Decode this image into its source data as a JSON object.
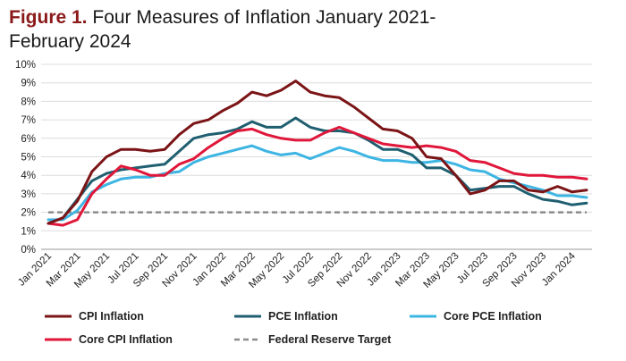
{
  "figure": {
    "title_prefix": "Figure 1.",
    "title_text": "Four Measures of Inflation January 2021-February 2024"
  },
  "chart_data": {
    "type": "line",
    "title": "Figure 1. Four Measures of Inflation January 2021-February 2024",
    "xlabel": "",
    "ylabel": "",
    "ylim": [
      0,
      10
    ],
    "y_ticks": [
      "0%",
      "1%",
      "2%",
      "3%",
      "4%",
      "5%",
      "6%",
      "7%",
      "8%",
      "9%",
      "10%"
    ],
    "x_tick_labels": [
      "Jan 2021",
      "Mar 2021",
      "May 2021",
      "Jul 2021",
      "Sep 2021",
      "Nov 2021",
      "Jan 2022",
      "Mar 2022",
      "May 2022",
      "Jul 2022",
      "Sep 2022",
      "Nov 2022",
      "Jan 2023",
      "Mar 2023",
      "May 2023",
      "Jul 2023",
      "Sep 2023",
      "Nov 2023",
      "Jan 2024"
    ],
    "x": [
      "Jan 2021",
      "Feb 2021",
      "Mar 2021",
      "Apr 2021",
      "May 2021",
      "Jun 2021",
      "Jul 2021",
      "Aug 2021",
      "Sep 2021",
      "Oct 2021",
      "Nov 2021",
      "Dec 2021",
      "Jan 2022",
      "Feb 2022",
      "Mar 2022",
      "Apr 2022",
      "May 2022",
      "Jun 2022",
      "Jul 2022",
      "Aug 2022",
      "Sep 2022",
      "Oct 2022",
      "Nov 2022",
      "Dec 2022",
      "Jan 2023",
      "Feb 2023",
      "Mar 2023",
      "Apr 2023",
      "May 2023",
      "Jun 2023",
      "Jul 2023",
      "Aug 2023",
      "Sep 2023",
      "Oct 2023",
      "Nov 2023",
      "Dec 2023",
      "Jan 2024",
      "Feb 2024"
    ],
    "grid": "horizontal",
    "legend_position": "bottom",
    "series": [
      {
        "name": "CPI Inflation",
        "color": "#7b1416",
        "dash": "solid",
        "values": [
          1.4,
          1.7,
          2.6,
          4.2,
          5.0,
          5.4,
          5.4,
          5.3,
          5.4,
          6.2,
          6.8,
          7.0,
          7.5,
          7.9,
          8.5,
          8.3,
          8.6,
          9.1,
          8.5,
          8.3,
          8.2,
          7.7,
          7.1,
          6.5,
          6.4,
          6.0,
          5.0,
          4.9,
          4.0,
          3.0,
          3.2,
          3.7,
          3.7,
          3.2,
          3.1,
          3.4,
          3.1,
          3.2
        ]
      },
      {
        "name": "PCE Inflation",
        "color": "#1f5f70",
        "dash": "solid",
        "values": [
          1.4,
          1.7,
          2.7,
          3.7,
          4.1,
          4.3,
          4.4,
          4.5,
          4.6,
          5.3,
          6.0,
          6.2,
          6.3,
          6.5,
          6.9,
          6.6,
          6.6,
          7.1,
          6.6,
          6.4,
          6.4,
          6.3,
          5.9,
          5.4,
          5.4,
          5.1,
          4.4,
          4.4,
          4.0,
          3.2,
          3.3,
          3.4,
          3.4,
          3.0,
          2.7,
          2.6,
          2.4,
          2.5
        ]
      },
      {
        "name": "Core PCE Inflation",
        "color": "#3db5e3",
        "dash": "solid",
        "values": [
          1.6,
          1.6,
          2.1,
          3.1,
          3.5,
          3.8,
          3.9,
          3.9,
          4.1,
          4.2,
          4.7,
          5.0,
          5.2,
          5.4,
          5.6,
          5.3,
          5.1,
          5.2,
          4.9,
          5.2,
          5.5,
          5.3,
          5.0,
          4.8,
          4.8,
          4.7,
          4.7,
          4.8,
          4.6,
          4.3,
          4.2,
          3.8,
          3.6,
          3.4,
          3.2,
          2.9,
          2.9,
          2.8
        ]
      },
      {
        "name": "Core CPI Inflation",
        "color": "#e0173a",
        "dash": "solid",
        "values": [
          1.4,
          1.3,
          1.6,
          3.0,
          3.8,
          4.5,
          4.3,
          4.0,
          4.0,
          4.6,
          4.9,
          5.5,
          6.0,
          6.4,
          6.5,
          6.2,
          6.0,
          5.9,
          5.9,
          6.3,
          6.6,
          6.3,
          6.0,
          5.7,
          5.6,
          5.5,
          5.6,
          5.5,
          5.3,
          4.8,
          4.7,
          4.4,
          4.1,
          4.0,
          4.0,
          3.9,
          3.9,
          3.8
        ]
      },
      {
        "name": "Federal Reserve Target",
        "color": "#8c8c8c",
        "dash": "dashed",
        "values": [
          2,
          2,
          2,
          2,
          2,
          2,
          2,
          2,
          2,
          2,
          2,
          2,
          2,
          2,
          2,
          2,
          2,
          2,
          2,
          2,
          2,
          2,
          2,
          2,
          2,
          2,
          2,
          2,
          2,
          2,
          2,
          2,
          2,
          2,
          2,
          2,
          2,
          2
        ]
      }
    ],
    "legend_rows": [
      [
        "CPI Inflation",
        "PCE Inflation",
        "Core PCE Inflation"
      ],
      [
        "Core CPI Inflation",
        "Federal Reserve Target"
      ]
    ]
  }
}
